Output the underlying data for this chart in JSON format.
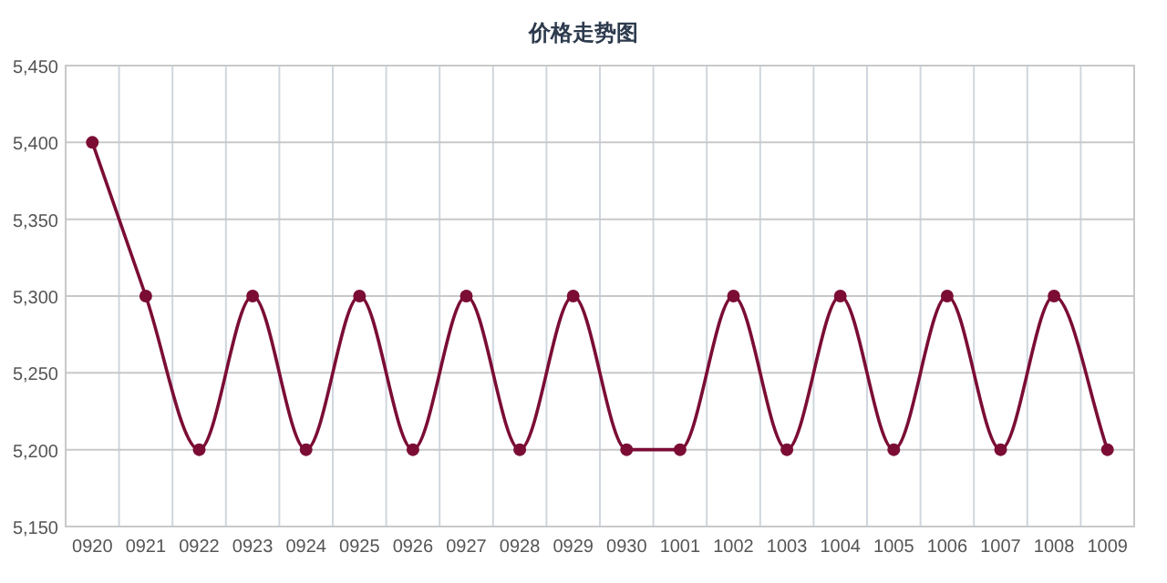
{
  "chart_data": {
    "type": "line",
    "title": "价格走势图",
    "categories": [
      "0920",
      "0921",
      "0922",
      "0923",
      "0924",
      "0925",
      "0926",
      "0927",
      "0928",
      "0929",
      "0930",
      "1001",
      "1002",
      "1003",
      "1004",
      "1005",
      "1006",
      "1007",
      "1008",
      "1009"
    ],
    "series": [
      {
        "color": "#7b0d35",
        "values": [
          5400,
          5300,
          5200,
          5300,
          5200,
          5300,
          5200,
          5300,
          5200,
          5300,
          5200,
          5200,
          5300,
          5200,
          5300,
          5200,
          5300,
          5200,
          5300,
          5200
        ]
      }
    ],
    "ylim": [
      5150,
      5450
    ],
    "yticks": [
      {
        "value": 5150,
        "label": "5,150"
      },
      {
        "value": 5200,
        "label": "5,200"
      },
      {
        "value": 5250,
        "label": "5,250"
      },
      {
        "value": 5300,
        "label": "5,300"
      },
      {
        "value": 5350,
        "label": "5,350"
      },
      {
        "value": 5400,
        "label": "5,400"
      },
      {
        "value": 5450,
        "label": "5,450"
      }
    ],
    "grid": true,
    "marker": "circle",
    "line_style": "solid"
  }
}
